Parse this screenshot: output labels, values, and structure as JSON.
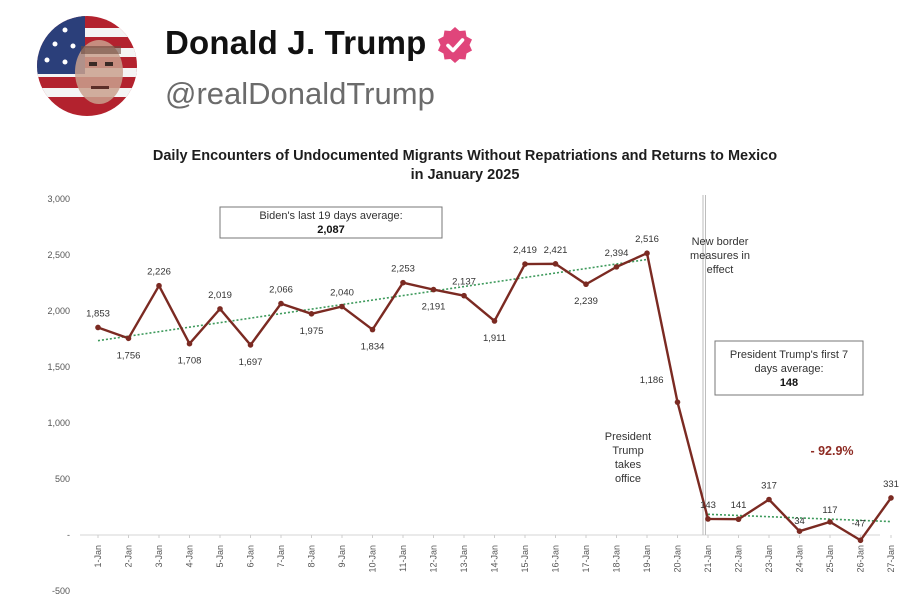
{
  "post": {
    "display_name": "Donald J. Trump",
    "handle": "@realDonaldTrump",
    "verified_color": "#e0457b"
  },
  "chart_data": {
    "type": "line",
    "title_line1": "Daily Encounters of Undocumented Migrants Without Repatriations and Returns to Mexico",
    "title_line2": "in January 2025",
    "categories": [
      "1-Jan",
      "2-Jan",
      "3-Jan",
      "4-Jan",
      "5-Jan",
      "6-Jan",
      "7-Jan",
      "8-Jan",
      "9-Jan",
      "10-Jan",
      "11-Jan",
      "12-Jan",
      "13-Jan",
      "14-Jan",
      "15-Jan",
      "16-Jan",
      "17-Jan",
      "18-Jan",
      "19-Jan",
      "20-Jan",
      "21-Jan",
      "22-Jan",
      "23-Jan",
      "24-Jan",
      "25-Jan",
      "26-Jan",
      "27-Jan"
    ],
    "values": [
      1853,
      1756,
      2226,
      1708,
      2019,
      1697,
      2066,
      1975,
      2040,
      1834,
      2253,
      2191,
      2137,
      1911,
      2419,
      2421,
      2239,
      2394,
      2516,
      1186,
      143,
      141,
      317,
      34,
      117,
      -47,
      331
    ],
    "labels": [
      "1,853",
      "1,756",
      "2,226",
      "1,708",
      "2,019",
      "1,697",
      "2,066",
      "1,975",
      "2,040",
      "1,834",
      "2,253",
      "2,191",
      "2,137",
      "1,911",
      "2,419",
      "2,421",
      "2,239",
      "2,394",
      "2,516",
      "1,186",
      "143",
      "141",
      "317",
      "34",
      "117",
      "-47",
      "331"
    ],
    "y_ticks": [
      -500,
      0,
      500,
      1000,
      1500,
      2000,
      2500,
      3000
    ],
    "y_tick_labels": [
      "-500",
      "-",
      "500",
      "1,000",
      "1,500",
      "2,000",
      "2,500",
      "3,000"
    ],
    "ylim": [
      -500,
      3000
    ],
    "grid": false,
    "line_color": "#7b2a22",
    "trend_color": "#3e9a5c",
    "trendlines": [
      {
        "from_index": 0,
        "to_index": 18,
        "y_start": 1735,
        "y_end": 2460
      },
      {
        "from_index": 20,
        "to_index": 26,
        "y_start": 185,
        "y_end": 120
      }
    ],
    "annotations": {
      "biden_avg_label": "Biden's last 19 days average:",
      "biden_avg_value": "2,087",
      "trump_avg_line1": "President Trump's first 7",
      "trump_avg_line2": "days average:",
      "trump_avg_value": "148",
      "border_line1": "New border",
      "border_line2": "measures in",
      "border_line3": "effect",
      "office_line1": "President",
      "office_line2": "Trump",
      "office_line3": "takes",
      "office_line4": "office",
      "pct_change": "- 92.9%"
    }
  }
}
